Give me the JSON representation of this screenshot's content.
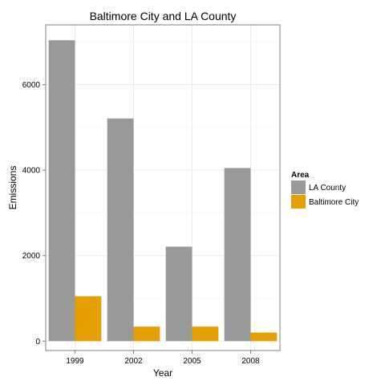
{
  "chart_data": {
    "type": "bar",
    "title": "Baltimore City and LA County",
    "xlabel": "Year",
    "ylabel": "Emissions",
    "categories": [
      "1999",
      "2002",
      "2005",
      "2008"
    ],
    "series": [
      {
        "name": "LA County",
        "color": "#999999",
        "values": [
          7040,
          5210,
          2210,
          4050
        ]
      },
      {
        "name": "Baltimore City",
        "color": "#E69F00",
        "values": [
          1050,
          340,
          340,
          200
        ]
      }
    ],
    "yticks": [
      0,
      2000,
      4000,
      6000
    ],
    "ylim": [
      -220,
      7400
    ],
    "legend": {
      "title": "Area",
      "placement": "right"
    },
    "grid": true
  }
}
